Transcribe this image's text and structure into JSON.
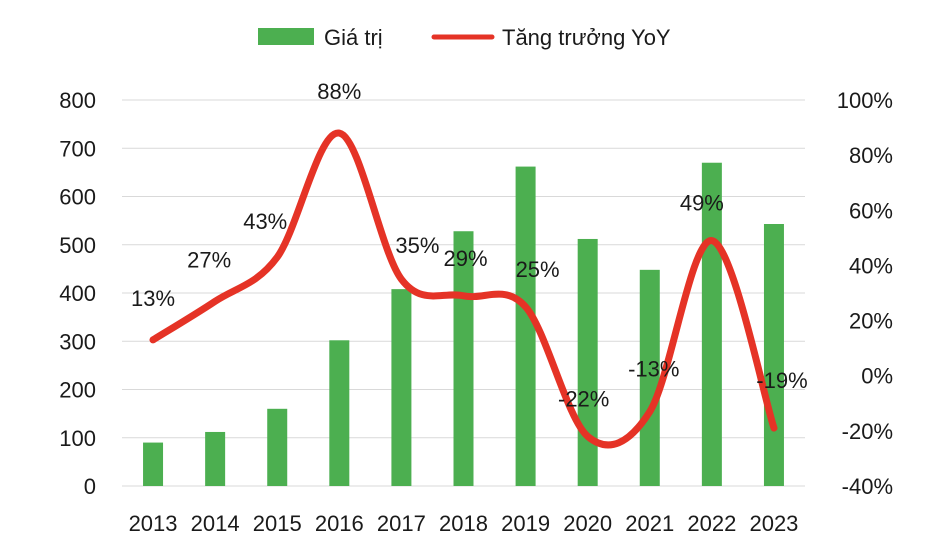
{
  "chart_data": {
    "type": "bar+line",
    "categories": [
      "2013",
      "2014",
      "2015",
      "2016",
      "2017",
      "2018",
      "2019",
      "2020",
      "2021",
      "2022",
      "2023"
    ],
    "series": [
      {
        "name": "Giá trị",
        "type": "bar",
        "axis": "left",
        "color": "#4caf50",
        "values": [
          90,
          112,
          160,
          302,
          408,
          528,
          662,
          512,
          448,
          670,
          543
        ]
      },
      {
        "name": "Tăng trưởng YoY",
        "type": "line",
        "axis": "right",
        "color": "#e53326",
        "values": [
          13,
          27,
          43,
          88,
          35,
          29,
          25,
          -22,
          -13,
          49,
          -19
        ],
        "labels": [
          "13%",
          "27%",
          "43%",
          "88%",
          "35%",
          "29%",
          "25%",
          "-22%",
          "-13%",
          "49%",
          "-19%"
        ]
      }
    ],
    "y_left": {
      "ylim": [
        0,
        800
      ],
      "ticks": [
        "0",
        "100",
        "200",
        "300",
        "400",
        "500",
        "600",
        "700",
        "800"
      ]
    },
    "y_right": {
      "ylim": [
        -40,
        100
      ],
      "ticks": [
        "-40%",
        "-20%",
        "0%",
        "20%",
        "40%",
        "60%",
        "80%",
        "100%"
      ]
    },
    "grid": true,
    "legend_position": "top-center"
  }
}
